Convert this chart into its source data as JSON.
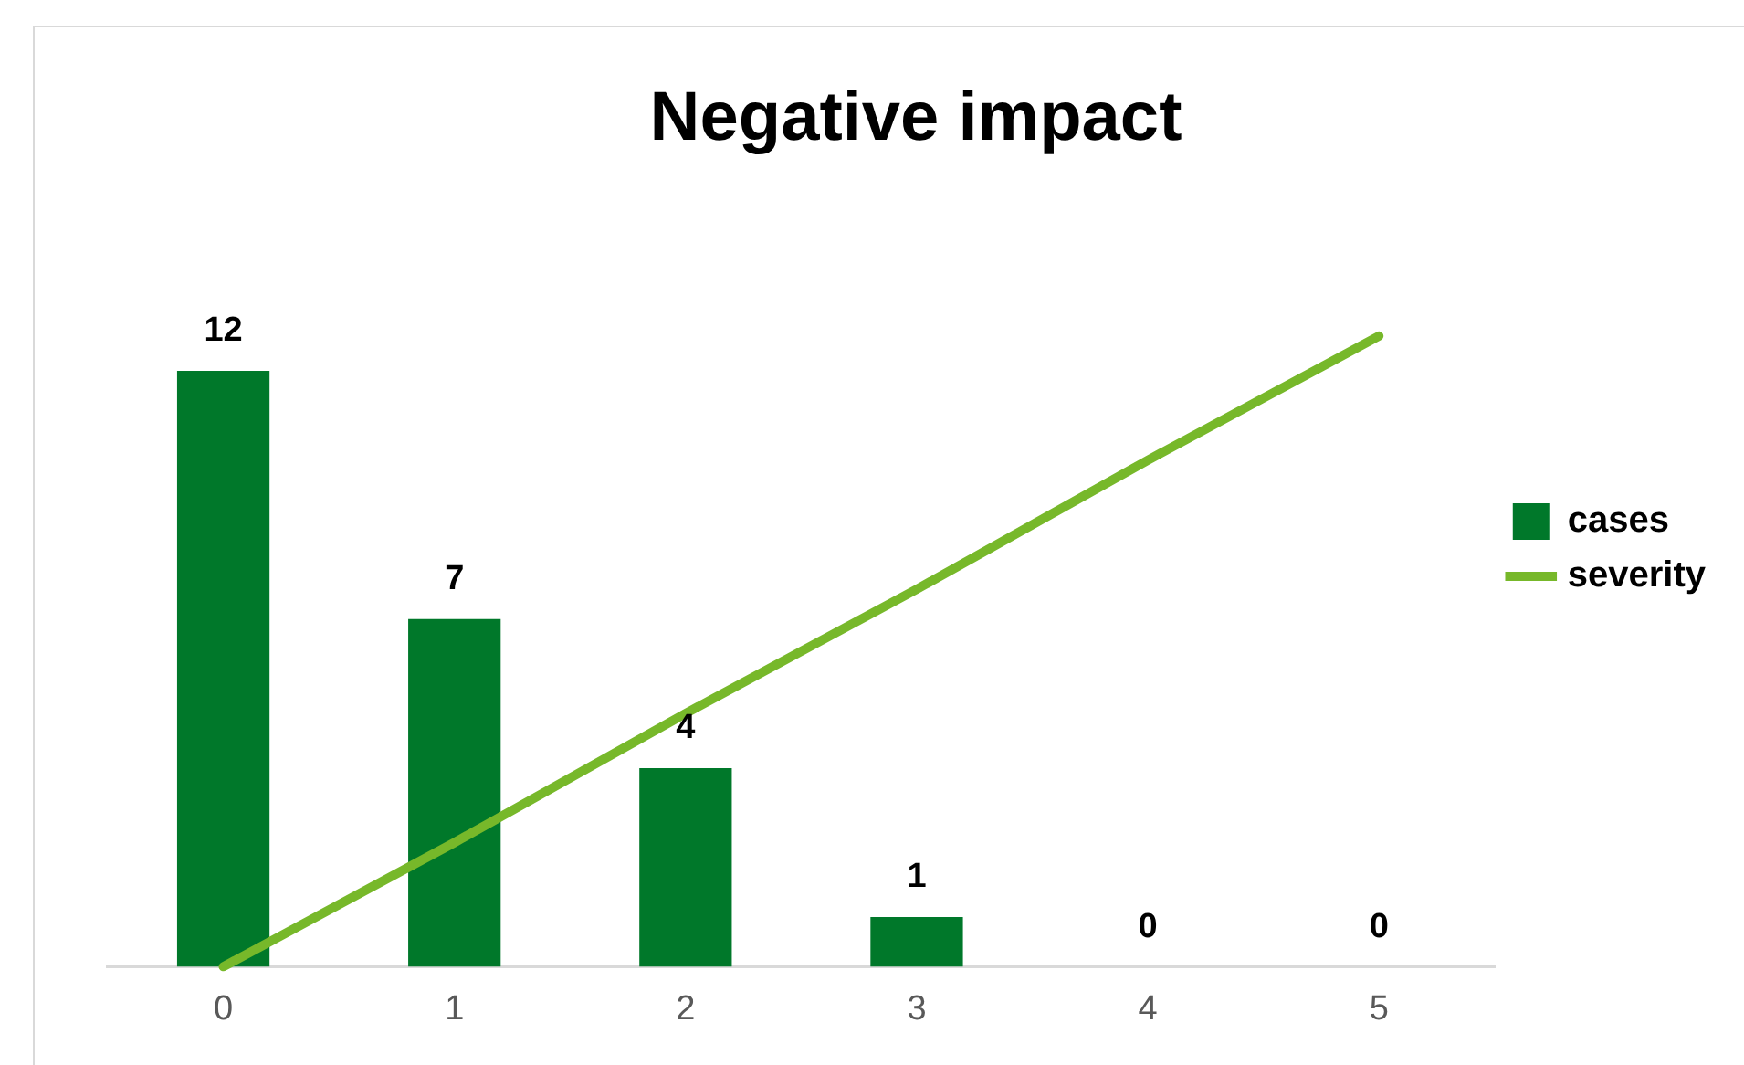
{
  "chart_data": {
    "type": "bar",
    "title": "Negative impact",
    "categories": [
      "0",
      "1",
      "2",
      "3",
      "4",
      "5"
    ],
    "series": [
      {
        "name": "cases",
        "color": "#00782a",
        "values": [
          12,
          7,
          4,
          1,
          0,
          0
        ],
        "value_labels": [
          "12",
          "7",
          "4",
          "1",
          "0",
          "0"
        ]
      },
      {
        "name": "severity",
        "type": "line",
        "color": "#77b82a",
        "values": [
          0,
          2.5,
          5.1,
          7.6,
          10.2,
          12.7
        ]
      }
    ],
    "tick_labels": "x",
    "grid": false,
    "legend": "right",
    "marker": "none"
  }
}
